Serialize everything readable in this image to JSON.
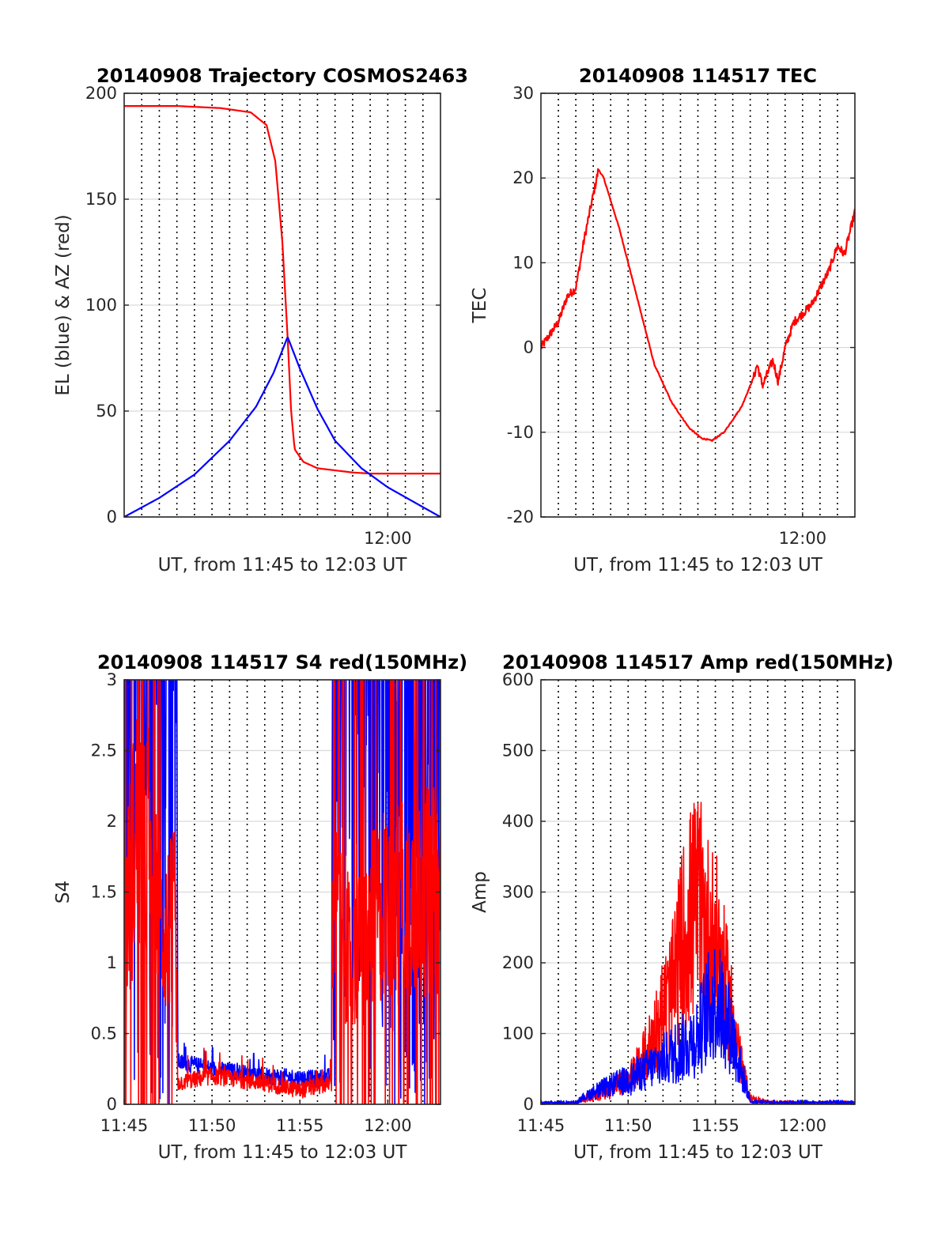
{
  "colors": {
    "red": "#ff0000",
    "blue": "#0000ff",
    "axis": "#262626",
    "grid": "#d9d9d9",
    "vgrid": "#000000"
  },
  "chart_data": [
    {
      "type": "line",
      "title": "20140908 Trajectory COSMOS2463",
      "xlabel": "UT, from 11:45 to 12:03 UT",
      "ylabel": "EL (blue) & AZ (red)",
      "xlim": [
        0,
        18
      ],
      "ylim": [
        0,
        200
      ],
      "yticks": [
        0,
        50,
        100,
        150,
        200
      ],
      "xticks": [
        {
          "v": 15,
          "label": "12:00"
        }
      ],
      "vgrid": [
        1,
        2,
        3,
        4,
        5,
        6,
        7,
        8,
        9,
        10,
        11,
        12,
        13,
        14,
        15,
        16,
        17
      ],
      "series": [
        {
          "color": "red",
          "kind": "az",
          "points": [
            [
              0,
              194
            ],
            [
              3,
              194
            ],
            [
              5.5,
              193
            ],
            [
              7.2,
              191
            ],
            [
              8.1,
              185
            ],
            [
              8.6,
              168
            ],
            [
              9.0,
              130
            ],
            [
              9.3,
              85
            ],
            [
              9.5,
              50
            ],
            [
              9.7,
              32
            ],
            [
              10.2,
              26
            ],
            [
              11,
              23
            ],
            [
              12,
              22
            ],
            [
              13,
              21
            ],
            [
              14,
              20.5
            ],
            [
              18,
              20.5
            ]
          ]
        },
        {
          "color": "blue",
          "kind": "el",
          "points": [
            [
              0,
              0
            ],
            [
              2,
              9
            ],
            [
              4,
              20
            ],
            [
              6,
              36
            ],
            [
              7.5,
              52
            ],
            [
              8.5,
              68
            ],
            [
              9.3,
              85
            ],
            [
              10,
              70
            ],
            [
              11,
              51
            ],
            [
              12,
              36
            ],
            [
              13.5,
              23
            ],
            [
              15,
              14
            ],
            [
              16.5,
              7
            ],
            [
              18,
              0
            ]
          ]
        }
      ]
    },
    {
      "type": "line",
      "title": "20140908 114517 TEC",
      "xlabel": "UT, from 11:45 to 12:03 UT",
      "ylabel": "TEC",
      "xlim": [
        0,
        18
      ],
      "ylim": [
        -20,
        30
      ],
      "yticks": [
        -20,
        -10,
        0,
        10,
        20,
        30
      ],
      "xticks": [
        {
          "v": 15,
          "label": "12:00"
        }
      ],
      "vgrid": [
        1,
        2,
        3,
        4,
        5,
        6,
        7,
        8,
        9,
        10,
        11,
        12,
        13,
        14,
        15,
        16,
        17
      ],
      "series": [
        {
          "color": "red",
          "noise": 0.5,
          "points": [
            [
              0,
              0
            ],
            [
              0.5,
              1.5
            ],
            [
              1,
              3
            ],
            [
              1.5,
              6
            ],
            [
              2,
              7
            ],
            [
              2.5,
              13
            ],
            [
              3,
              18
            ],
            [
              3.3,
              21
            ],
            [
              3.6,
              20
            ],
            [
              4.5,
              14
            ],
            [
              5.5,
              6
            ],
            [
              6.5,
              -2
            ],
            [
              7.5,
              -6.5
            ],
            [
              8.5,
              -9.5
            ],
            [
              9.2,
              -10.7
            ],
            [
              9.8,
              -11
            ],
            [
              10.5,
              -10
            ],
            [
              11.5,
              -7
            ],
            [
              12.2,
              -3.5
            ],
            [
              12.4,
              -2
            ],
            [
              12.7,
              -4.5
            ],
            [
              13,
              -3
            ],
            [
              13.3,
              -1.5
            ],
            [
              13.6,
              -4
            ],
            [
              14,
              0
            ],
            [
              14.5,
              3
            ],
            [
              15,
              4
            ],
            [
              15.5,
              5
            ],
            [
              16,
              7
            ],
            [
              16.5,
              9
            ],
            [
              17,
              12
            ],
            [
              17.4,
              11
            ],
            [
              18,
              16
            ]
          ]
        }
      ]
    },
    {
      "type": "line",
      "title": "20140908 114517 S4 red(150MHz)",
      "xlabel": "UT, from 11:45 to 12:03 UT",
      "ylabel": "S4",
      "xlim": [
        0,
        18
      ],
      "ylim": [
        0,
        3
      ],
      "yticks": [
        0,
        0.5,
        1,
        1.5,
        2,
        2.5,
        3
      ],
      "xticks": [
        {
          "v": 0,
          "label": "11:45"
        },
        {
          "v": 5,
          "label": "11:50"
        },
        {
          "v": 10,
          "label": "11:55"
        },
        {
          "v": 15,
          "label": "12:00"
        }
      ],
      "vgrid": [
        1,
        2,
        3,
        4,
        5,
        6,
        7,
        8,
        9,
        10,
        11,
        12,
        13,
        14,
        15,
        16,
        17
      ],
      "series": [
        {
          "color": "blue",
          "kind": "s4",
          "points": [
            [
              0,
              3
            ],
            [
              3,
              3
            ],
            [
              3.05,
              0.3
            ],
            [
              5,
              0.25
            ],
            [
              8,
              0.2
            ],
            [
              11,
              0.18
            ],
            [
              11.8,
              0.2
            ],
            [
              11.85,
              3
            ],
            [
              18,
              3
            ]
          ]
        },
        {
          "color": "red",
          "kind": "s4",
          "points": [
            [
              0,
              1.3
            ],
            [
              0.8,
              2.0
            ],
            [
              1.5,
              1.8
            ],
            [
              2.2,
              1.2
            ],
            [
              2.9,
              1.3
            ],
            [
              3.05,
              0.15
            ],
            [
              5,
              0.2
            ],
            [
              8,
              0.15
            ],
            [
              10,
              0.1
            ],
            [
              11.8,
              0.15
            ],
            [
              11.85,
              1.4
            ],
            [
              13,
              1.0
            ],
            [
              15,
              1.5
            ],
            [
              18,
              1.5
            ]
          ]
        }
      ]
    },
    {
      "type": "line",
      "title": "20140908 114517 Amp red(150MHz)",
      "xlabel": "UT, from 11:45 to 12:03 UT",
      "ylabel": "Amp",
      "xlim": [
        0,
        18
      ],
      "ylim": [
        0,
        600
      ],
      "yticks": [
        0,
        100,
        200,
        300,
        400,
        500,
        600
      ],
      "xticks": [
        {
          "v": 0,
          "label": "11:45"
        },
        {
          "v": 5,
          "label": "11:50"
        },
        {
          "v": 10,
          "label": "11:55"
        },
        {
          "v": 15,
          "label": "12:00"
        }
      ],
      "vgrid": [
        1,
        2,
        3,
        4,
        5,
        6,
        7,
        8,
        9,
        10,
        11,
        12,
        13,
        14,
        15,
        16,
        17
      ],
      "series": [
        {
          "color": "red",
          "kind": "amp",
          "points": [
            [
              0,
              0
            ],
            [
              2,
              2
            ],
            [
              3,
              15
            ],
            [
              4,
              25
            ],
            [
              5,
              40
            ],
            [
              6,
              80
            ],
            [
              7,
              150
            ],
            [
              7.5,
              180
            ],
            [
              8,
              250
            ],
            [
              8.5,
              300
            ],
            [
              9,
              320
            ],
            [
              9.5,
              280
            ],
            [
              10,
              260
            ],
            [
              10.5,
              200
            ],
            [
              11,
              140
            ],
            [
              11.5,
              60
            ],
            [
              12,
              10
            ],
            [
              13,
              3
            ],
            [
              18,
              2
            ]
          ]
        },
        {
          "color": "blue",
          "kind": "amp",
          "points": [
            [
              0,
              2
            ],
            [
              2,
              3
            ],
            [
              3,
              20
            ],
            [
              4,
              30
            ],
            [
              5,
              40
            ],
            [
              6,
              55
            ],
            [
              7,
              70
            ],
            [
              8,
              90
            ],
            [
              9,
              110
            ],
            [
              9.5,
              150
            ],
            [
              10,
              170
            ],
            [
              10.5,
              150
            ],
            [
              11,
              110
            ],
            [
              11.5,
              50
            ],
            [
              12,
              5
            ],
            [
              13,
              3
            ],
            [
              18,
              3
            ]
          ]
        }
      ]
    }
  ]
}
